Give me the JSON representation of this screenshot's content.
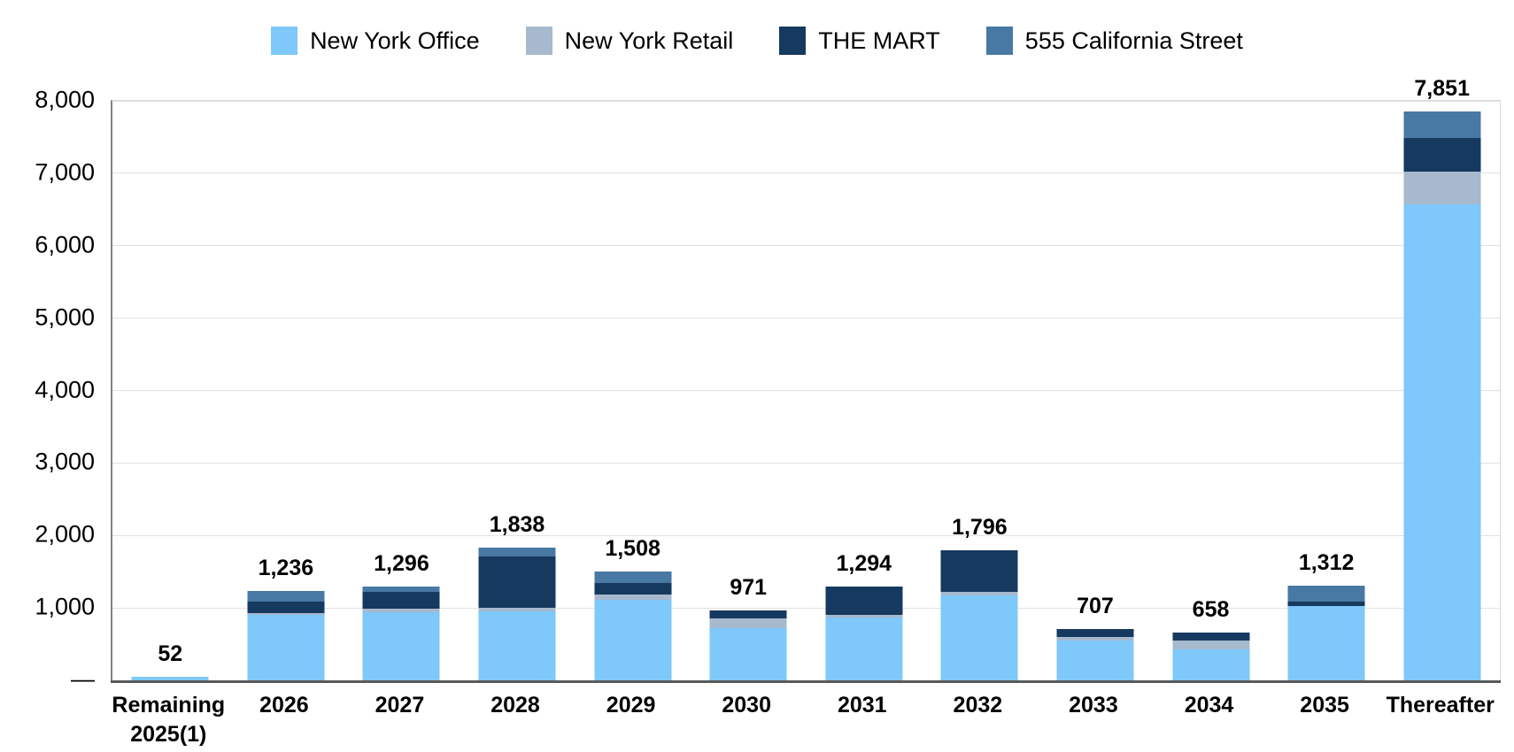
{
  "chart_data": {
    "type": "bar",
    "stacked": true,
    "title": "",
    "xlabel": "",
    "ylabel": "",
    "ylim": [
      0,
      8000
    ],
    "ytick_interval": 1000,
    "ytick_labels": [
      "—",
      "1,000",
      "2,000",
      "3,000",
      "4,000",
      "5,000",
      "6,000",
      "7,000",
      "8,000"
    ],
    "grid": true,
    "legend_position": "top",
    "categories": [
      "Remaining 2025(1)",
      "2026",
      "2027",
      "2028",
      "2029",
      "2030",
      "2031",
      "2032",
      "2033",
      "2034",
      "2035",
      "Thereafter"
    ],
    "series": [
      {
        "name": "New York Office",
        "color": "#7EC8FA",
        "values": [
          52,
          902,
          945,
          954,
          1110,
          726,
          867,
          1175,
          545,
          430,
          1025,
          6576
        ]
      },
      {
        "name": "New York Retail",
        "color": "#A6B9CD",
        "values": [
          0,
          25,
          41,
          49,
          73,
          125,
          37,
          45,
          55,
          125,
          0,
          446
        ]
      },
      {
        "name": "THE MART",
        "color": "#16395F",
        "values": [
          0,
          161,
          236,
          709,
          163,
          120,
          390,
          576,
          107,
          103,
          62,
          465
        ]
      },
      {
        "name": "555 California Street",
        "color": "#4878A4",
        "values": [
          0,
          148,
          74,
          126,
          162,
          0,
          0,
          0,
          0,
          0,
          225,
          364
        ]
      }
    ],
    "totals": [
      52,
      1236,
      1296,
      1838,
      1508,
      971,
      1294,
      1796,
      707,
      658,
      1312,
      7851
    ],
    "totals_labels": [
      "52",
      "1,236",
      "1,296",
      "1,838",
      "1,508",
      "971",
      "1,294",
      "1,796",
      "707",
      "658",
      "1,312",
      "7,851"
    ]
  },
  "colors": {
    "background": "#FFFFFF",
    "gridline": "#E2E2E2",
    "axis_line": "#808080",
    "baseline": "#595959",
    "text": "#000000"
  }
}
